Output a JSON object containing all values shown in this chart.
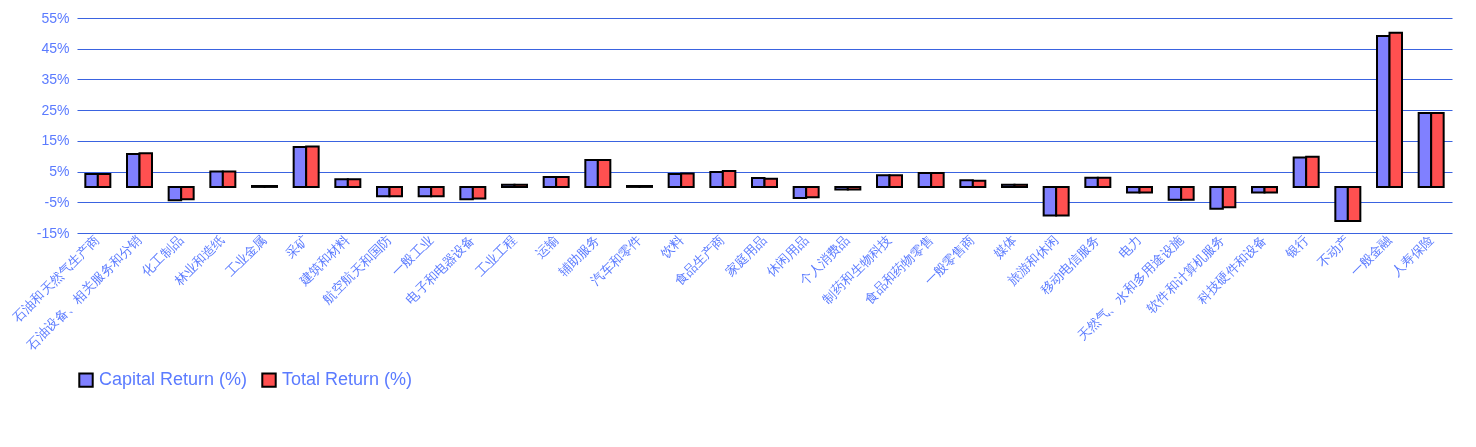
{
  "chart_data": {
    "type": "bar",
    "categories": [
      "石油和天然气生产商",
      "石油设备、相关服务和分销",
      "化工制品",
      "林业和造纸",
      "工业金属",
      "采矿",
      "建筑和材料",
      "航空航天和国防",
      "一般工业",
      "电子和电器设备",
      "工业工程",
      "运输",
      "辅助服务",
      "汽车和零件",
      "饮料",
      "食品生产商",
      "家庭用品",
      "休闲用品",
      "个人消费品",
      "制药和生物科技",
      "食品和药物零售",
      "一般零售商",
      "媒体",
      "旅游和休闲",
      "移动电信服务",
      "电力",
      "天然气、水和多用途设施",
      "软件和计算机服务",
      "科技硬件和设备",
      "银行",
      "不动产",
      "一般金融",
      "人寿保险"
    ],
    "series": [
      {
        "name": "Capital Return (%)",
        "color": "#8080ff",
        "values": [
          4.2,
          10.7,
          -4.3,
          5.0,
          0.3,
          13.0,
          2.5,
          -3.0,
          -3.0,
          -4.0,
          0.7,
          3.2,
          8.8,
          0.3,
          4.2,
          4.9,
          2.9,
          -3.6,
          -0.8,
          3.8,
          4.5,
          2.2,
          0.7,
          -9.3,
          3.0,
          -1.8,
          -4.2,
          -7.1,
          -1.8,
          9.6,
          -11.1,
          49.1,
          24.1
        ]
      },
      {
        "name": "Total Return (%)",
        "color": "#ff5050",
        "values": [
          4.2,
          11.0,
          -4.0,
          5.0,
          0.3,
          13.2,
          2.5,
          -3.0,
          -3.0,
          -3.8,
          0.7,
          3.2,
          8.8,
          0.3,
          4.4,
          5.2,
          2.7,
          -3.4,
          -0.8,
          3.8,
          4.5,
          2.0,
          0.7,
          -9.3,
          3.0,
          -1.8,
          -4.2,
          -6.6,
          -1.8,
          9.8,
          -11.1,
          50.2,
          24.1
        ]
      }
    ],
    "ylim": [
      -15,
      55
    ],
    "yticks": [
      {
        "value": -15,
        "label": "-15%"
      },
      {
        "value": -5,
        "label": "-5%"
      },
      {
        "value": 5,
        "label": "5%"
      },
      {
        "value": 15,
        "label": "15%"
      },
      {
        "value": 25,
        "label": "25%"
      },
      {
        "value": 35,
        "label": "35%"
      },
      {
        "value": 45,
        "label": "45%"
      },
      {
        "value": 55,
        "label": "55%"
      }
    ],
    "grid": "y",
    "legend": "bottom"
  }
}
